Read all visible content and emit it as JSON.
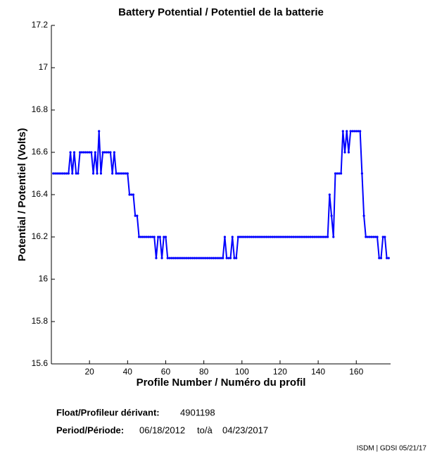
{
  "chart_data": {
    "type": "line",
    "title": "Battery Potential / Potentiel de la batterie",
    "xlabel": "Profile Number / Numéro du profil",
    "ylabel": "Potential / Potentiel (Volts)",
    "xlim": [
      0,
      178
    ],
    "xticks": [
      20,
      40,
      60,
      80,
      100,
      120,
      140,
      160
    ],
    "ylim": [
      15.6,
      17.2
    ],
    "yticks": [
      15.6,
      15.8,
      16,
      16.2,
      16.4,
      16.6,
      16.8,
      17,
      17.2
    ],
    "grid": false,
    "x": [
      1,
      2,
      3,
      4,
      5,
      6,
      7,
      8,
      9,
      10,
      11,
      12,
      13,
      14,
      15,
      16,
      17,
      18,
      19,
      20,
      21,
      22,
      23,
      24,
      25,
      26,
      27,
      28,
      29,
      30,
      31,
      32,
      33,
      34,
      35,
      36,
      37,
      38,
      39,
      40,
      41,
      42,
      43,
      44,
      45,
      46,
      47,
      48,
      49,
      50,
      51,
      52,
      53,
      54,
      55,
      56,
      57,
      58,
      59,
      60,
      61,
      62,
      63,
      64,
      65,
      66,
      67,
      68,
      69,
      70,
      71,
      72,
      73,
      74,
      75,
      76,
      77,
      78,
      79,
      80,
      81,
      82,
      83,
      84,
      85,
      86,
      87,
      88,
      89,
      90,
      91,
      92,
      93,
      94,
      95,
      96,
      97,
      98,
      99,
      100,
      101,
      102,
      103,
      104,
      105,
      106,
      107,
      108,
      109,
      110,
      111,
      112,
      113,
      114,
      115,
      116,
      117,
      118,
      119,
      120,
      121,
      122,
      123,
      124,
      125,
      126,
      127,
      128,
      129,
      130,
      131,
      132,
      133,
      134,
      135,
      136,
      137,
      138,
      139,
      140,
      141,
      142,
      143,
      144,
      145,
      146,
      147,
      148,
      149,
      150,
      151,
      152,
      153,
      154,
      155,
      156,
      157,
      158,
      159,
      160,
      161,
      162,
      163,
      164,
      165,
      166,
      167,
      168,
      169,
      170,
      171,
      172,
      173,
      174,
      175,
      176,
      177
    ],
    "series": [
      {
        "name": "Battery Potential",
        "color": "#0000ff",
        "values": [
          16.5,
          16.5,
          16.5,
          16.5,
          16.5,
          16.5,
          16.5,
          16.5,
          16.5,
          16.6,
          16.5,
          16.6,
          16.5,
          16.5,
          16.6,
          16.6,
          16.6,
          16.6,
          16.6,
          16.6,
          16.6,
          16.5,
          16.6,
          16.5,
          16.7,
          16.5,
          16.6,
          16.6,
          16.6,
          16.6,
          16.6,
          16.5,
          16.6,
          16.5,
          16.5,
          16.5,
          16.5,
          16.5,
          16.5,
          16.5,
          16.4,
          16.4,
          16.4,
          16.3,
          16.3,
          16.2,
          16.2,
          16.2,
          16.2,
          16.2,
          16.2,
          16.2,
          16.2,
          16.2,
          16.1,
          16.2,
          16.2,
          16.1,
          16.2,
          16.2,
          16.1,
          16.1,
          16.1,
          16.1,
          16.1,
          16.1,
          16.1,
          16.1,
          16.1,
          16.1,
          16.1,
          16.1,
          16.1,
          16.1,
          16.1,
          16.1,
          16.1,
          16.1,
          16.1,
          16.1,
          16.1,
          16.1,
          16.1,
          16.1,
          16.1,
          16.1,
          16.1,
          16.1,
          16.1,
          16.1,
          16.2,
          16.1,
          16.1,
          16.1,
          16.2,
          16.1,
          16.1,
          16.2,
          16.2,
          16.2,
          16.2,
          16.2,
          16.2,
          16.2,
          16.2,
          16.2,
          16.2,
          16.2,
          16.2,
          16.2,
          16.2,
          16.2,
          16.2,
          16.2,
          16.2,
          16.2,
          16.2,
          16.2,
          16.2,
          16.2,
          16.2,
          16.2,
          16.2,
          16.2,
          16.2,
          16.2,
          16.2,
          16.2,
          16.2,
          16.2,
          16.2,
          16.2,
          16.2,
          16.2,
          16.2,
          16.2,
          16.2,
          16.2,
          16.2,
          16.2,
          16.2,
          16.2,
          16.2,
          16.2,
          16.2,
          16.4,
          16.3,
          16.2,
          16.5,
          16.5,
          16.5,
          16.5,
          16.7,
          16.6,
          16.7,
          16.6,
          16.7,
          16.7,
          16.7,
          16.7,
          16.7,
          16.7,
          16.5,
          16.3,
          16.2,
          16.2,
          16.2,
          16.2,
          16.2,
          16.2,
          16.2,
          16.1,
          16.1,
          16.2,
          16.2,
          16.1,
          16.1
        ]
      }
    ]
  },
  "footer": {
    "float_label": "Float/Profileur dérivant:",
    "float_id": "4901198",
    "period_label": "Period/Période:",
    "start": "06/18/2012",
    "to": "to/à",
    "end": "04/23/2017",
    "credit": "ISDM | GDSI 05/21/17"
  }
}
